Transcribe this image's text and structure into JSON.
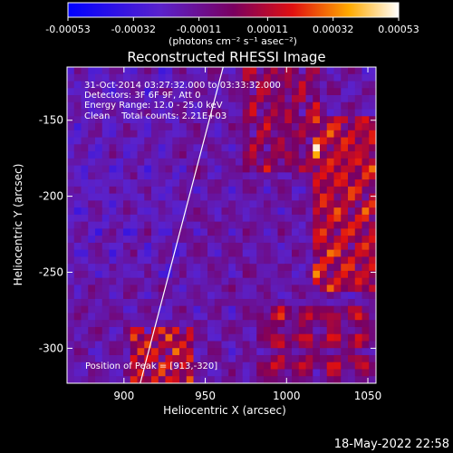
{
  "chart_data": {
    "type": "heatmap",
    "title": "Reconstructed RHESSI Image",
    "xlabel": "Heliocentric X (arcsec)",
    "ylabel": "Heliocentric Y (arcsec)",
    "xlim": [
      865,
      1055
    ],
    "ylim": [
      -323,
      -115
    ],
    "x_ticks": [
      900,
      950,
      1000,
      1050
    ],
    "y_ticks": [
      -300,
      -250,
      -200,
      -150
    ],
    "annotations": [
      "31-Oct-2014 03:27:32.000 to 03:33:32.000",
      "Detectors: 3F 6F 9F, Att 0",
      "Energy Range: 12.0 - 25.0 keV",
      "Clean    Total counts: 2.21E+03"
    ],
    "peak_label": "Position of Peak = [913,-320]",
    "peak": [
      913,
      -320
    ],
    "limb_line": [
      [
        910,
        -323
      ],
      [
        961,
        -115
      ]
    ],
    "colorbar": {
      "min": -0.00053,
      "max": 0.00053,
      "tick_labels": [
        "-0.00053",
        "-0.00032",
        "-0.00011",
        "0.00011",
        "0.00032",
        "0.00053"
      ],
      "units": "(photons cm⁻² s⁻¹ asec⁻²)"
    },
    "grid": false,
    "colormap": "blue-purple-red-yellow-white"
  },
  "footer": {
    "timestamp": "18-May-2022 22:58"
  }
}
